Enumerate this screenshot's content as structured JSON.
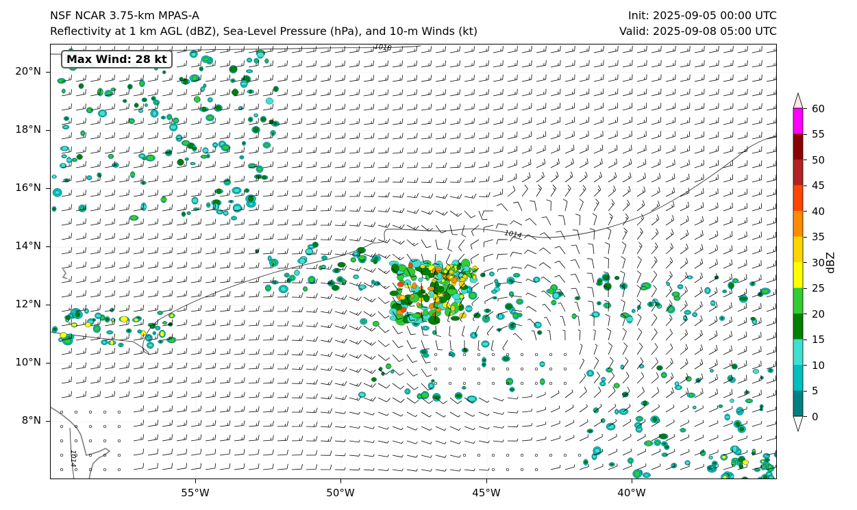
{
  "header": {
    "title_line1": "NSF NCAR 3.75-km MPAS-A",
    "title_line2": "Reflectivity at 1 km AGL (dBZ), Sea-Level Pressure (hPa), and 10-m Winds (kt)",
    "init": "Init: 2025-09-05 00:00 UTC",
    "valid": "Valid: 2025-09-08 05:00 UTC"
  },
  "annotation": {
    "max_wind": "Max Wind: 28 kt"
  },
  "axes": {
    "lat_labels": [
      "20°N",
      "18°N",
      "16°N",
      "14°N",
      "12°N",
      "10°N",
      "8°N"
    ],
    "lon_labels": [
      "55°W",
      "50°W",
      "45°W",
      "40°W"
    ]
  },
  "isobars": [
    {
      "label": "1018",
      "value": 1018
    },
    {
      "label": "1014",
      "value": 1014
    }
  ],
  "colorbar": {
    "title": "dBZ",
    "tick_labels": [
      "0",
      "5",
      "10",
      "15",
      "20",
      "25",
      "30",
      "35",
      "40",
      "45",
      "50",
      "55",
      "60"
    ],
    "colors": [
      "#008080",
      "#00bfbf",
      "#40e0d0",
      "#008000",
      "#32cd32",
      "#ffff00",
      "#ffd700",
      "#ff8c00",
      "#ff4500",
      "#b22222",
      "#8b0000",
      "#ff00ff",
      "#ffe4e1"
    ]
  }
}
